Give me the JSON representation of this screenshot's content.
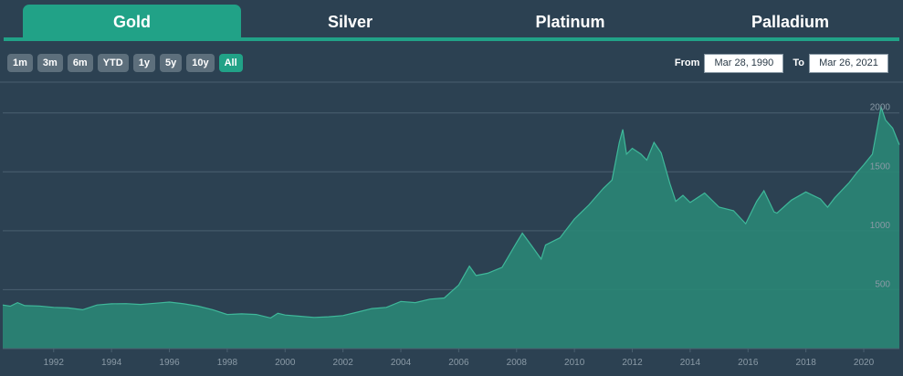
{
  "tabs": [
    {
      "label": "Gold",
      "active": true
    },
    {
      "label": "Silver",
      "active": false
    },
    {
      "label": "Platinum",
      "active": false
    },
    {
      "label": "Palladium",
      "active": false
    }
  ],
  "range_buttons": [
    {
      "label": "1m",
      "active": false
    },
    {
      "label": "3m",
      "active": false
    },
    {
      "label": "6m",
      "active": false
    },
    {
      "label": "YTD",
      "active": false
    },
    {
      "label": "1y",
      "active": false
    },
    {
      "label": "5y",
      "active": false
    },
    {
      "label": "10y",
      "active": false
    },
    {
      "label": "All",
      "active": true
    }
  ],
  "date_range": {
    "from_label": "From",
    "from_value": "Mar 28, 1990",
    "to_label": "To",
    "to_value": "Mar 26, 2021"
  },
  "colors": {
    "background": "#2c4152",
    "accent": "#21a287",
    "area_fill": "#2a8676",
    "line": "#3fb89a",
    "grid": "#4a6070",
    "tick_text": "#8a9aa6"
  },
  "chart_data": {
    "type": "area",
    "title": "",
    "xlabel": "",
    "ylabel": "",
    "xlim": [
      1990.24,
      2021.23
    ],
    "ylim": [
      0,
      2300
    ],
    "x_ticks": [
      1992,
      1994,
      1996,
      1998,
      2000,
      2002,
      2004,
      2006,
      2008,
      2010,
      2012,
      2014,
      2016,
      2018,
      2020
    ],
    "y_ticks": [
      500,
      1000,
      1500,
      2000
    ],
    "grid": true,
    "legend": "none",
    "series": [
      {
        "x": [
          1990.24,
          1990.5,
          1990.75,
          1991.0,
          1991.5,
          1992.0,
          1992.5,
          1993.0,
          1993.5,
          1994.0,
          1994.5,
          1995.0,
          1995.5,
          1996.0,
          1996.5,
          1997.0,
          1997.5,
          1998.0,
          1998.5,
          1999.0,
          1999.5,
          1999.75,
          2000.0,
          2000.5,
          2001.0,
          2001.5,
          2002.0,
          2002.5,
          2003.0,
          2003.5,
          2004.0,
          2004.5,
          2005.0,
          2005.5,
          2006.0,
          2006.37,
          2006.6,
          2007.0,
          2007.5,
          2008.0,
          2008.2,
          2008.5,
          2008.85,
          2009.0,
          2009.5,
          2010.0,
          2010.5,
          2011.0,
          2011.3,
          2011.55,
          2011.67,
          2011.8,
          2012.0,
          2012.3,
          2012.5,
          2012.75,
          2013.0,
          2013.3,
          2013.5,
          2013.75,
          2014.0,
          2014.5,
          2015.0,
          2015.5,
          2015.92,
          2016.3,
          2016.55,
          2016.9,
          2017.0,
          2017.5,
          2018.0,
          2018.5,
          2018.75,
          2019.0,
          2019.5,
          2019.75,
          2020.0,
          2020.3,
          2020.6,
          2020.75,
          2021.0,
          2021.23
        ],
        "y": [
          370,
          360,
          390,
          365,
          362,
          350,
          345,
          330,
          370,
          380,
          382,
          375,
          385,
          395,
          380,
          360,
          330,
          290,
          295,
          290,
          260,
          300,
          285,
          275,
          265,
          270,
          280,
          310,
          340,
          350,
          400,
          390,
          420,
          430,
          540,
          700,
          620,
          640,
          690,
          900,
          980,
          880,
          760,
          880,
          940,
          1100,
          1220,
          1360,
          1430,
          1750,
          1860,
          1650,
          1700,
          1650,
          1600,
          1750,
          1660,
          1400,
          1250,
          1300,
          1240,
          1320,
          1200,
          1170,
          1060,
          1250,
          1340,
          1160,
          1150,
          1260,
          1330,
          1270,
          1200,
          1280,
          1410,
          1490,
          1560,
          1650,
          2050,
          1940,
          1870,
          1730
        ]
      }
    ]
  }
}
